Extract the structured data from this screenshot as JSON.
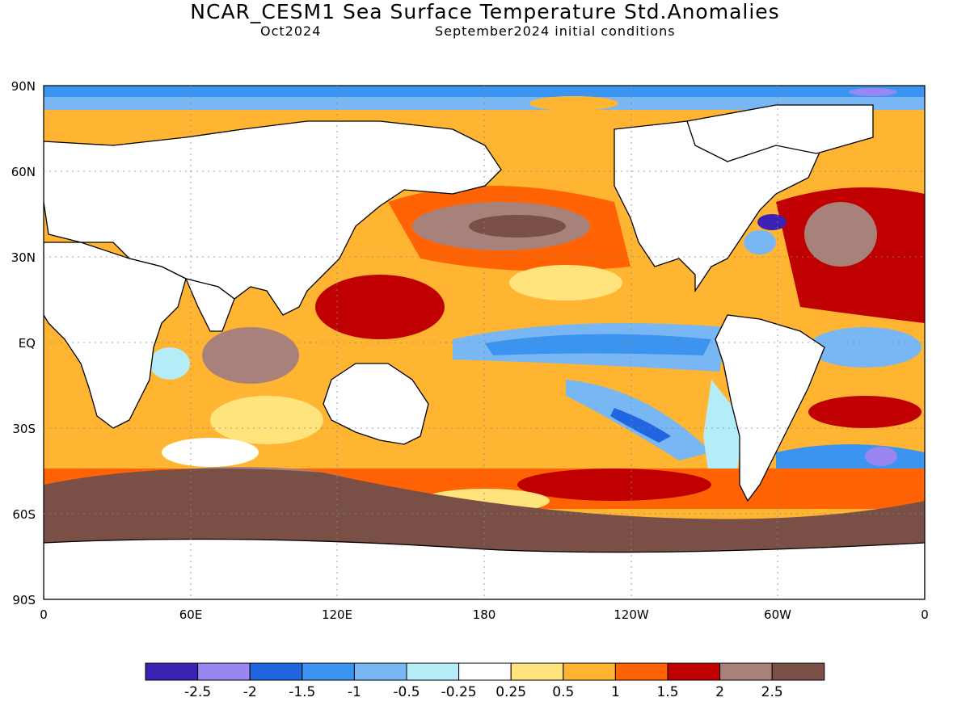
{
  "header": {
    "title": "NCAR_CESM1 Sea Surface Temperature Std.Anomalies",
    "subtitle_left": "Oct2024",
    "subtitle_right": "September2024 initial conditions"
  },
  "map": {
    "lat_labels": [
      "90N",
      "60N",
      "30N",
      "EQ",
      "30S",
      "60S",
      "90S"
    ],
    "lon_labels": [
      "0",
      "60E",
      "120E",
      "180",
      "120W",
      "60W",
      "0"
    ],
    "colors": {
      "land": "#ffffff",
      "coast": "#000000"
    }
  },
  "legend": {
    "colors": [
      "#3b22b4",
      "#9a86f0",
      "#2166e0",
      "#3a94f0",
      "#78b6f4",
      "#b4ecf8",
      "#ffffff",
      "#ffe37c",
      "#ffb532",
      "#ff6304",
      "#c00000",
      "#a8817a",
      "#7a4f46"
    ],
    "labels": [
      "-2.5",
      "-2",
      "-1.5",
      "-1",
      "-0.5",
      "-0.25",
      "0.25",
      "0.5",
      "1",
      "1.5",
      "2",
      "2.5"
    ]
  }
}
